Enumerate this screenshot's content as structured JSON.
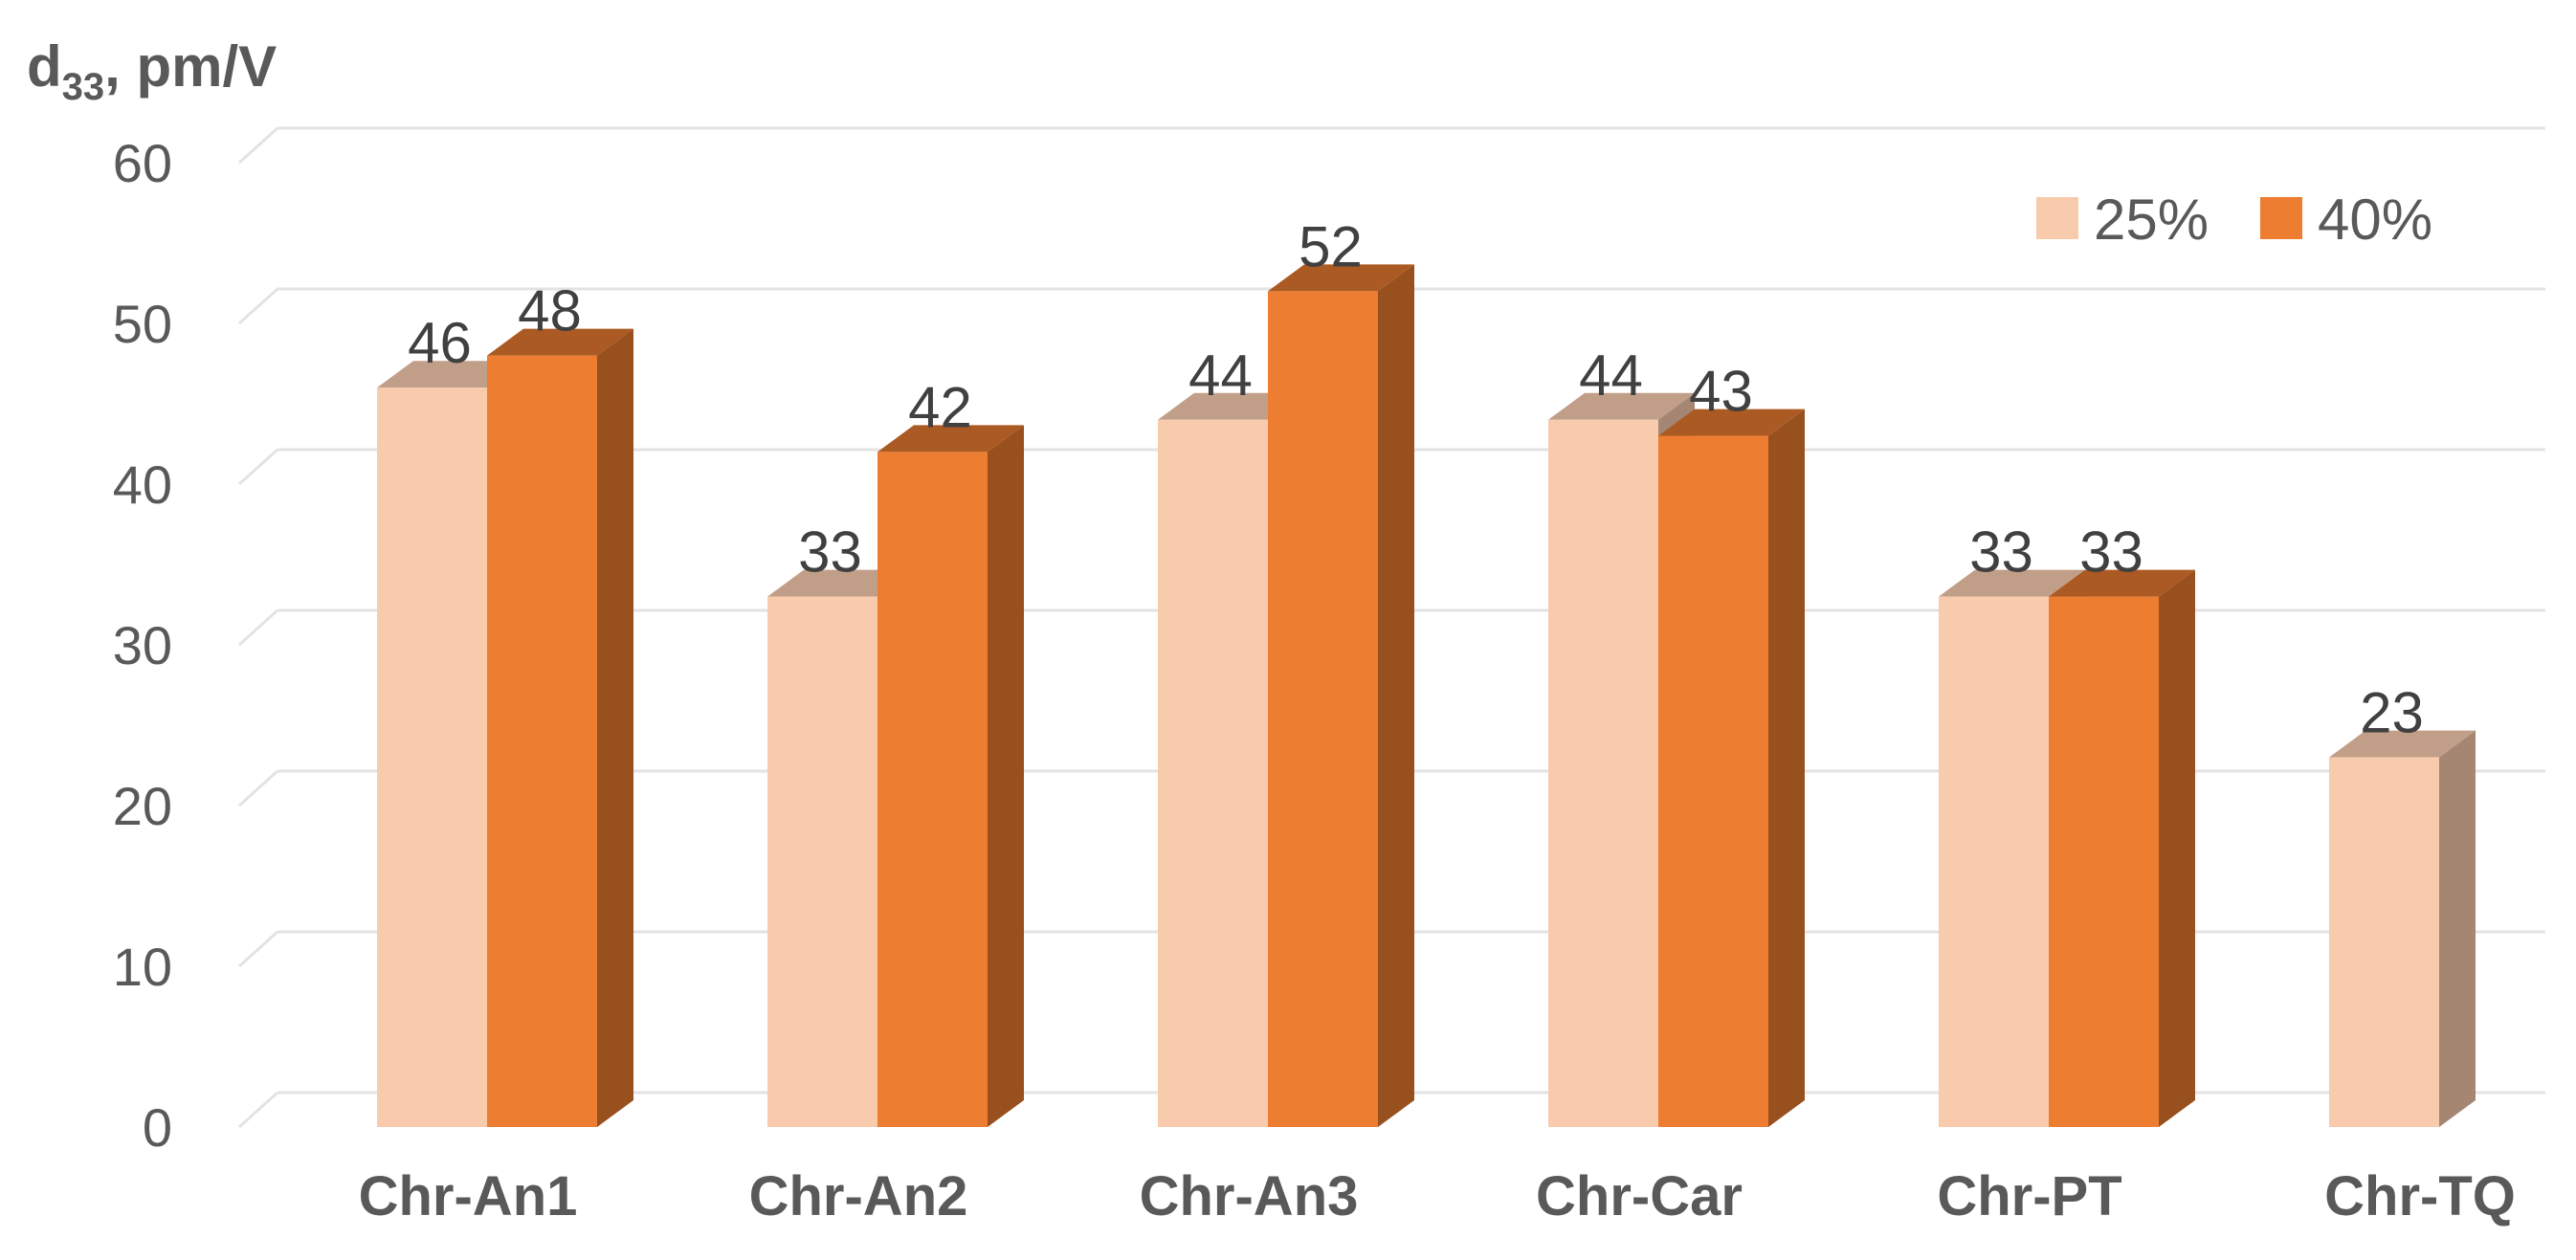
{
  "chart_data": {
    "type": "bar",
    "style": "3d-clustered-column",
    "ylabel": {
      "main": "d",
      "sub": "33",
      "unit": ", pm/V"
    },
    "ylim": [
      0,
      60
    ],
    "yticks": [
      0,
      10,
      20,
      30,
      40,
      50,
      60
    ],
    "grid": true,
    "legend_position": "top-right",
    "categories": [
      "Chr-An1",
      "Chr-An2",
      "Chr-An3",
      "Chr-Car",
      "Chr-PT",
      "Chr-TQ"
    ],
    "series": [
      {
        "name": "25%",
        "color": "#F8CBAD",
        "values": [
          46,
          33,
          44,
          44,
          33,
          23
        ]
      },
      {
        "name": "40%",
        "color": "#ED7D31",
        "values": [
          48,
          42,
          52,
          43,
          33,
          null
        ]
      }
    ]
  }
}
